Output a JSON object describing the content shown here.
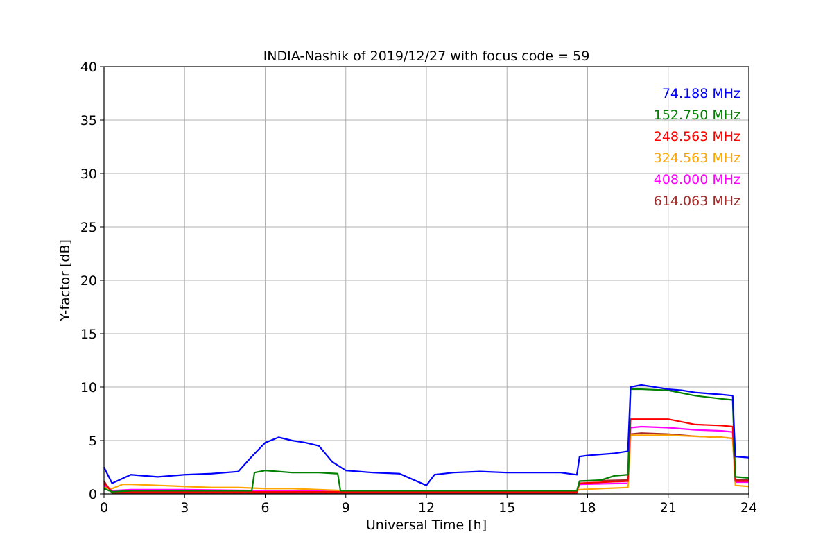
{
  "chart_data": {
    "type": "line",
    "title": "INDIA-Nashik of 2019/12/27 with focus code = 59",
    "xlabel": "Universal Time [h]",
    "ylabel": "Y-factor [dB]",
    "xlim": [
      0,
      24
    ],
    "ylim": [
      0,
      40
    ],
    "xticks": [
      0,
      3,
      6,
      9,
      12,
      15,
      18,
      21,
      24
    ],
    "yticks": [
      0,
      5,
      10,
      15,
      20,
      25,
      30,
      35,
      40
    ],
    "grid": true,
    "legend_position": "top-right",
    "series": [
      {
        "name": "74.188 MHz",
        "color": "#0000ff",
        "x": [
          0,
          0.3,
          1,
          2,
          3,
          4,
          5,
          5.5,
          6,
          6.5,
          7,
          7.5,
          8,
          8.5,
          9,
          10,
          11,
          12,
          12.3,
          13,
          14,
          15,
          16,
          17,
          17.6,
          17.7,
          18,
          18.5,
          19,
          19.5,
          19.6,
          20,
          20.5,
          21,
          21.5,
          22,
          22.5,
          23,
          23.4,
          23.5,
          24
        ],
        "y": [
          2.5,
          1.0,
          1.8,
          1.6,
          1.8,
          1.9,
          2.1,
          3.5,
          4.8,
          5.3,
          5.0,
          4.8,
          4.5,
          3.0,
          2.2,
          2.0,
          1.9,
          0.8,
          1.8,
          2.0,
          2.1,
          2.0,
          2.0,
          2.0,
          1.8,
          3.5,
          3.6,
          3.7,
          3.8,
          4.0,
          10.0,
          10.2,
          10.0,
          9.8,
          9.7,
          9.5,
          9.4,
          9.3,
          9.2,
          3.5,
          3.4
        ]
      },
      {
        "name": "152.750 MHz",
        "color": "#008000",
        "x": [
          0,
          0.3,
          1,
          3,
          5.5,
          5.6,
          6,
          7,
          8,
          8.7,
          8.8,
          10,
          12,
          14,
          16,
          17.6,
          17.7,
          18.5,
          19,
          19.5,
          19.6,
          20,
          21,
          22,
          23,
          23.4,
          23.5,
          24
        ],
        "y": [
          0.5,
          0.2,
          0.3,
          0.3,
          0.3,
          2.0,
          2.2,
          2.0,
          2.0,
          1.9,
          0.3,
          0.3,
          0.3,
          0.3,
          0.3,
          0.3,
          1.2,
          1.3,
          1.7,
          1.8,
          9.8,
          9.8,
          9.7,
          9.2,
          8.9,
          8.8,
          1.6,
          1.5
        ]
      },
      {
        "name": "248.563 MHz",
        "color": "#ff0000",
        "x": [
          0,
          0.3,
          1,
          5,
          10,
          12,
          15,
          17.6,
          17.7,
          19.5,
          19.6,
          20,
          21,
          22,
          23,
          23.4,
          23.5,
          24
        ],
        "y": [
          1.0,
          0.2,
          0.2,
          0.2,
          0.2,
          0.2,
          0.2,
          0.2,
          1.0,
          1.2,
          7.0,
          7.0,
          7.0,
          6.5,
          6.4,
          6.3,
          1.2,
          1.2
        ]
      },
      {
        "name": "324.563 MHz",
        "color": "#ffa500",
        "x": [
          0,
          0.3,
          0.7,
          1,
          2,
          3,
          4,
          5,
          6,
          7,
          8,
          9,
          10,
          11,
          12,
          13,
          14,
          15,
          16,
          17,
          17.6,
          17.7,
          18.5,
          19.5,
          19.6,
          20,
          21,
          22,
          23,
          23.4,
          23.5,
          24
        ],
        "y": [
          0.6,
          0.5,
          0.9,
          0.9,
          0.8,
          0.7,
          0.6,
          0.6,
          0.5,
          0.5,
          0.4,
          0.3,
          0.3,
          0.3,
          0.3,
          0.3,
          0.3,
          0.3,
          0.3,
          0.3,
          0.3,
          0.4,
          0.5,
          0.6,
          5.5,
          5.5,
          5.5,
          5.4,
          5.3,
          5.2,
          0.8,
          0.7
        ]
      },
      {
        "name": "408.000 MHz",
        "color": "#ff00ff",
        "x": [
          0,
          0.3,
          1,
          3,
          6,
          9,
          12,
          15,
          17.6,
          17.7,
          19.5,
          19.6,
          20,
          21,
          22,
          23,
          23.4,
          23.5,
          24
        ],
        "y": [
          0.8,
          0.3,
          0.4,
          0.4,
          0.3,
          0.3,
          0.3,
          0.3,
          0.3,
          0.9,
          1.0,
          6.2,
          6.3,
          6.2,
          6.0,
          5.9,
          5.8,
          1.1,
          1.1
        ]
      },
      {
        "name": "614.063 MHz",
        "color": "#a52a2a",
        "x": [
          0,
          0.3,
          1,
          3,
          6,
          9,
          12,
          15,
          17.6,
          17.7,
          19.5,
          19.6,
          20,
          21,
          22,
          23,
          23.4,
          23.5,
          24
        ],
        "y": [
          1.2,
          0.1,
          0.1,
          0.1,
          0.1,
          0.1,
          0.1,
          0.1,
          0.1,
          1.2,
          1.3,
          5.6,
          5.7,
          5.6,
          5.4,
          5.3,
          5.2,
          1.3,
          1.3
        ]
      }
    ]
  }
}
